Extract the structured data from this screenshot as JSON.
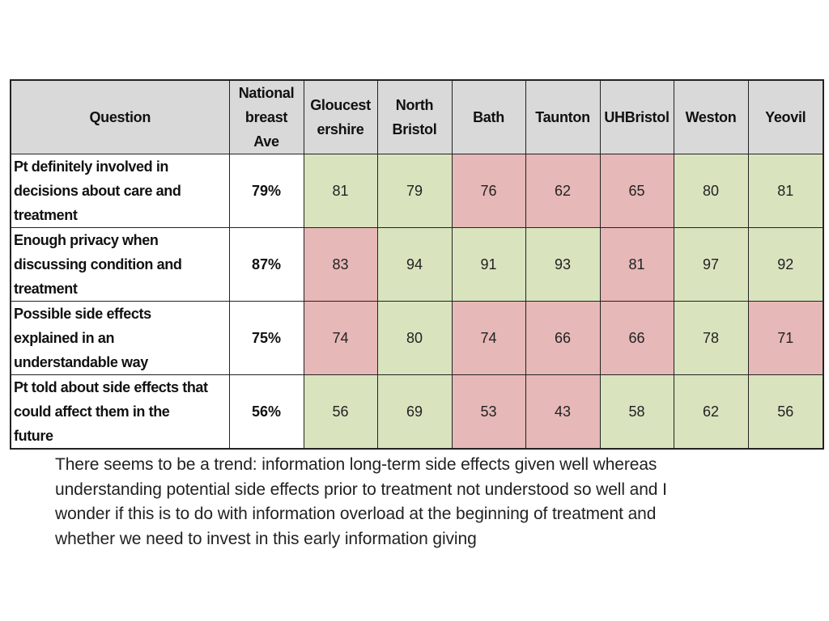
{
  "table": {
    "headers": [
      "Question",
      "National breast Ave",
      "Gloucest ershire",
      "North Bristol",
      "Bath",
      "Taunton",
      "UHBristol",
      "Weston",
      "Yeovil"
    ],
    "header_lines": [
      [
        "Question"
      ],
      [
        "National",
        "breast",
        "Ave"
      ],
      [
        "Gloucest",
        "ershire"
      ],
      [
        "North",
        "Bristol"
      ],
      [
        "Bath"
      ],
      [
        "Taunton"
      ],
      [
        "UHBristol"
      ],
      [
        "Weston"
      ],
      [
        "Yeovil"
      ]
    ],
    "rows": [
      {
        "question_lines": [
          "Pt definitely involved in",
          "decisions about care and",
          "treatment"
        ],
        "national": "79%",
        "values": [
          "81",
          "79",
          "76",
          "62",
          "65",
          "80",
          "81"
        ],
        "status": [
          "good",
          "good",
          "bad",
          "bad",
          "bad",
          "good",
          "good"
        ]
      },
      {
        "question_lines": [
          "Enough privacy when",
          "discussing condition and",
          "treatment"
        ],
        "national": "87%",
        "values": [
          "83",
          "94",
          "91",
          "93",
          "81",
          "97",
          "92"
        ],
        "status": [
          "bad",
          "good",
          "good",
          "good",
          "bad",
          "good",
          "good"
        ]
      },
      {
        "question_lines": [
          "Possible side effects",
          "explained in an",
          "understandable way"
        ],
        "national": "75%",
        "values": [
          "74",
          "80",
          "74",
          "66",
          "66",
          "78",
          "71"
        ],
        "status": [
          "bad",
          "good",
          "bad",
          "bad",
          "bad",
          "good",
          "bad"
        ]
      },
      {
        "question_lines": [
          "Pt told about side effects that",
          "could affect them in the",
          "future"
        ],
        "national": "56%",
        "values": [
          "56",
          "69",
          "53",
          "43",
          "58",
          "62",
          "56"
        ],
        "status": [
          "good",
          "good",
          "bad",
          "bad",
          "good",
          "good",
          "good"
        ]
      }
    ]
  },
  "colors": {
    "good": "#d9e4bf",
    "bad": "#e6b8b7",
    "header_bg": "#d9d9d9"
  },
  "comment_lines": [
    "There seems to be a trend: information long-term side effects given well  whereas",
    "understanding potential side effects prior to treatment not understood so well and I",
    "wonder if this is to do with information overload at the beginning of treatment and",
    "whether we need to invest in this early information giving"
  ]
}
